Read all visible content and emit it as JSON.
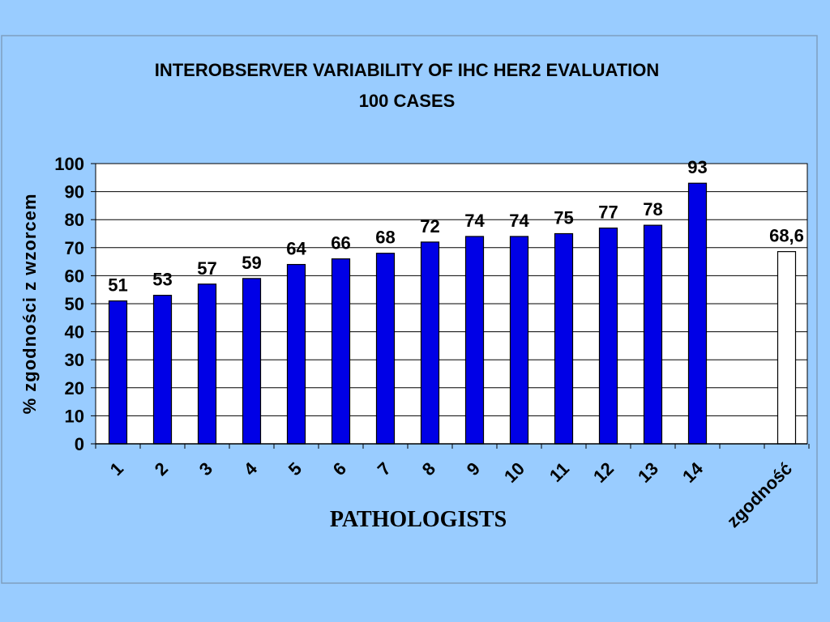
{
  "chart_data": {
    "type": "bar",
    "title": "INTEROBSERVER VARIABILITY OF IHC HER2 EVALUATION",
    "subtitle": "100 CASES",
    "xlabel": "PATHOLOGISTS",
    "ylabel": "% zgodności z wzorcem",
    "ylim": [
      0,
      100
    ],
    "yticks": [
      0,
      10,
      20,
      30,
      40,
      50,
      60,
      70,
      80,
      90,
      100
    ],
    "grid": true,
    "categories": [
      "1",
      "2",
      "3",
      "4",
      "5",
      "6",
      "7",
      "8",
      "9",
      "10",
      "11",
      "12",
      "13",
      "14",
      "",
      "zgodność"
    ],
    "values": [
      51,
      53,
      57,
      59,
      64,
      66,
      68,
      72,
      74,
      74,
      75,
      77,
      78,
      93,
      null,
      68.6
    ],
    "data_labels": [
      "51",
      "53",
      "57",
      "59",
      "64",
      "66",
      "68",
      "72",
      "74",
      "74",
      "75",
      "77",
      "78",
      "93",
      "",
      "68,6"
    ],
    "colors": {
      "bar": "#0000E6",
      "summary_bar": "#FFFFFF",
      "background": "#99CCFF",
      "plot_area": "#FFFFFF"
    }
  }
}
